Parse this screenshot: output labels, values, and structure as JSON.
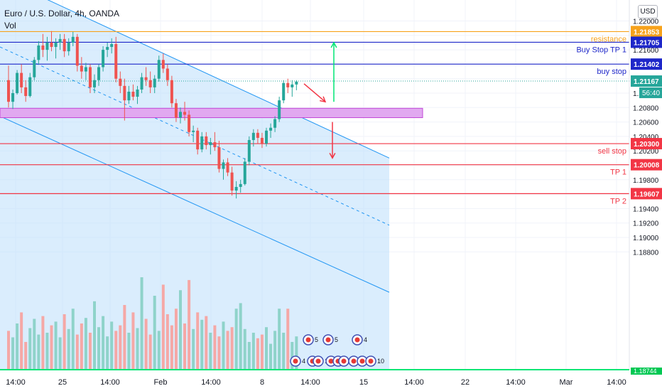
{
  "legend": {
    "symbol_title": "Euro / U.S. Dollar, 4h, OANDA",
    "indicator": "Vol"
  },
  "currency_button": "USD",
  "colors": {
    "up": "#26a69a",
    "down": "#ef5350",
    "vol_up": "#8fd3ca",
    "vol_down": "#f5a8a6",
    "channel": "#2196f3",
    "channel_fill": "#bbdefb",
    "resistance": "#f7a21b",
    "blue_level": "#1e27c9",
    "red_level": "#f23645",
    "zone_fill": "#e1a9f0",
    "zone_border": "#c24ad6",
    "arrow_up": "#00e676",
    "arrow_down": "#f23645",
    "last_price": "#26a69a"
  },
  "chart_data": {
    "type": "candlestick",
    "symbol": "Euro / U.S. Dollar",
    "timeframe": "4h",
    "y_axis_ticks": [
      1.22,
      1.218,
      1.216,
      1.214,
      1.212,
      1.21,
      1.208,
      1.206,
      1.204,
      1.202,
      1.2,
      1.198,
      1.196,
      1.194,
      1.192,
      1.19,
      1.188
    ],
    "y_axis_tick_labels": [
      "1.22000",
      "1.21800",
      "1.21600",
      "1.21400",
      "1.21200",
      "1.21000",
      "1.20800",
      "1.20600",
      "1.20400",
      "1.20200",
      "1.20000",
      "1.19800",
      "1.19600",
      "1.19400",
      "1.19200",
      "1.19000",
      "1.18800"
    ],
    "ylim": [
      1.1874,
      1.2225
    ],
    "x_axis_ticks": [
      "14:00",
      "25",
      "14:00",
      "Feb",
      "14:00",
      "8",
      "14:00",
      "15",
      "14:00",
      "22",
      "14:00",
      "Mar",
      "14:00"
    ],
    "candles_ohlc": [
      [
        1.2118,
        1.2138,
        1.208,
        1.2088
      ],
      [
        1.2088,
        1.2105,
        1.2078,
        1.21
      ],
      [
        1.21,
        1.2132,
        1.2098,
        1.2128
      ],
      [
        1.2128,
        1.214,
        1.21,
        1.2108
      ],
      [
        1.2108,
        1.2118,
        1.2088,
        1.2096
      ],
      [
        1.2096,
        1.2128,
        1.2094,
        1.2122
      ],
      [
        1.2122,
        1.215,
        1.2118,
        1.2146
      ],
      [
        1.2146,
        1.2172,
        1.214,
        1.2166
      ],
      [
        1.2166,
        1.2182,
        1.215,
        1.216
      ],
      [
        1.216,
        1.2178,
        1.2145,
        1.217
      ],
      [
        1.217,
        1.2186,
        1.2158,
        1.2164
      ],
      [
        1.2164,
        1.2176,
        1.2148,
        1.217
      ],
      [
        1.217,
        1.2182,
        1.216,
        1.2175
      ],
      [
        1.2175,
        1.2182,
        1.215,
        1.2158
      ],
      [
        1.2158,
        1.2176,
        1.2152,
        1.217
      ],
      [
        1.217,
        1.2185,
        1.2165,
        1.2178
      ],
      [
        1.2178,
        1.2182,
        1.213,
        1.2138
      ],
      [
        1.2138,
        1.215,
        1.212,
        1.213
      ],
      [
        1.213,
        1.2142,
        1.2118,
        1.2136
      ],
      [
        1.2136,
        1.214,
        1.21,
        1.2108
      ],
      [
        1.2108,
        1.2126,
        1.21,
        1.2118
      ],
      [
        1.2118,
        1.214,
        1.211,
        1.2136
      ],
      [
        1.2136,
        1.2165,
        1.213,
        1.216
      ],
      [
        1.216,
        1.217,
        1.215,
        1.2164
      ],
      [
        1.2164,
        1.2176,
        1.2155,
        1.2168
      ],
      [
        1.2168,
        1.2178,
        1.2115,
        1.212
      ],
      [
        1.212,
        1.213,
        1.21,
        1.211
      ],
      [
        1.211,
        1.212,
        1.2062,
        1.209
      ],
      [
        1.209,
        1.211,
        1.2085,
        1.2102
      ],
      [
        1.2102,
        1.2112,
        1.209,
        1.2095
      ],
      [
        1.2095,
        1.211,
        1.2085,
        1.2105
      ],
      [
        1.2105,
        1.2128,
        1.21,
        1.2122
      ],
      [
        1.2122,
        1.2136,
        1.211,
        1.2118
      ],
      [
        1.2118,
        1.213,
        1.21,
        1.2108
      ],
      [
        1.2108,
        1.2125,
        1.21,
        1.212
      ],
      [
        1.212,
        1.2152,
        1.2116,
        1.2146
      ],
      [
        1.2146,
        1.2155,
        1.2128,
        1.2134
      ],
      [
        1.2134,
        1.214,
        1.211,
        1.2118
      ],
      [
        1.2118,
        1.2124,
        1.208,
        1.2086
      ],
      [
        1.2086,
        1.2092,
        1.206,
        1.2066
      ],
      [
        1.2066,
        1.208,
        1.2058,
        1.2074
      ],
      [
        1.2074,
        1.2088,
        1.2062,
        1.207
      ],
      [
        1.207,
        1.2076,
        1.204,
        1.2046
      ],
      [
        1.2046,
        1.2055,
        1.2032,
        1.2048
      ],
      [
        1.2048,
        1.2052,
        1.2015,
        1.2022
      ],
      [
        1.2022,
        1.2046,
        1.2018,
        1.204
      ],
      [
        1.204,
        1.2046,
        1.2022,
        1.2028
      ],
      [
        1.2028,
        1.2038,
        1.2015,
        1.2032
      ],
      [
        1.2032,
        1.2046,
        1.202,
        1.2025
      ],
      [
        1.2025,
        1.2034,
        1.199,
        1.1995
      ],
      [
        1.1995,
        1.2008,
        1.198,
        1.2004
      ],
      [
        1.2004,
        1.201,
        1.1985,
        1.199
      ],
      [
        1.199,
        1.1998,
        1.1958,
        1.1965
      ],
      [
        1.1965,
        1.1978,
        1.1954,
        1.197
      ],
      [
        1.197,
        1.198,
        1.1962,
        1.1974
      ],
      [
        1.1974,
        1.201,
        1.1972,
        1.2005
      ],
      [
        1.2005,
        1.204,
        1.2,
        1.2035
      ],
      [
        1.2035,
        1.205,
        1.2026,
        1.2045
      ],
      [
        1.2045,
        1.205,
        1.203,
        1.2038
      ],
      [
        1.2038,
        1.2045,
        1.2024,
        1.203
      ],
      [
        1.203,
        1.2052,
        1.2026,
        1.2048
      ],
      [
        1.2048,
        1.2058,
        1.2038,
        1.2052
      ],
      [
        1.2052,
        1.2068,
        1.2046,
        1.2064
      ],
      [
        1.2064,
        1.2095,
        1.206,
        1.209
      ],
      [
        1.209,
        1.2118,
        1.2086,
        1.2114
      ],
      [
        1.2114,
        1.212,
        1.21,
        1.2108
      ],
      [
        1.2108,
        1.2118,
        1.2095,
        1.2112
      ],
      [
        1.2112,
        1.2118,
        1.2104,
        1.2116
      ]
    ],
    "volume_heights": [
      0.42,
      0.35,
      0.5,
      0.62,
      0.3,
      0.45,
      0.55,
      0.38,
      0.58,
      0.4,
      0.48,
      0.52,
      0.35,
      0.6,
      0.44,
      0.66,
      0.38,
      0.5,
      0.56,
      0.4,
      0.74,
      0.46,
      0.58,
      0.36,
      0.52,
      0.42,
      0.48,
      0.7,
      0.4,
      0.62,
      0.45,
      1.0,
      0.55,
      0.38,
      0.8,
      0.42,
      0.92,
      0.6,
      0.48,
      0.66,
      0.86,
      0.5,
      0.97,
      0.44,
      0.62,
      0.54,
      0.58,
      0.4,
      0.48,
      0.36,
      0.52,
      0.42,
      0.46,
      0.66,
      0.72,
      0.44,
      0.3,
      0.4,
      0.34,
      0.38,
      0.46,
      0.28,
      0.42,
      0.66,
      0.4,
      0.66,
      0.3,
      0.36
    ],
    "channel": {
      "upper_start": 1.226,
      "upper_end": 1.201,
      "lower_start": 1.2068,
      "lower_end": 1.1824
    },
    "horizontal_levels": [
      {
        "name": "resistance",
        "value": 1.21853,
        "label": "resistance",
        "price_label": "1.21853"
      },
      {
        "name": "buy-stop-tp1",
        "value": 1.21705,
        "label": "Buy Stop TP 1",
        "price_label": "1.21705"
      },
      {
        "name": "buy-stop",
        "value": 1.21402,
        "label": "buy stop",
        "price_label": "1.21402"
      },
      {
        "name": "sell-stop",
        "value": 1.203,
        "label": "sell stop",
        "price_label": "1.20300"
      },
      {
        "name": "tp1",
        "value": 1.20008,
        "label": "TP 1",
        "price_label": "1.20008"
      },
      {
        "name": "tp2",
        "value": 1.19607,
        "label": "TP 2",
        "price_label": "1.19607"
      }
    ],
    "last_price": {
      "value": 1.21167,
      "label": "1.21167",
      "countdown": "56:40"
    },
    "bottom_price_label": "1.18744",
    "zone": {
      "top": 1.2079,
      "bottom": 1.2066
    },
    "arrows": [
      {
        "name": "arrow-up",
        "from": 1.2088,
        "to": 1.217
      },
      {
        "name": "arrow-down-short",
        "from": 1.2113,
        "to": 1.2088
      },
      {
        "name": "arrow-down-long",
        "from": 1.206,
        "to": 1.201
      }
    ],
    "event_badges": [
      {
        "label": "5",
        "row": "top"
      },
      {
        "label": "5",
        "row": "top"
      },
      {
        "label": "4",
        "row": "top"
      },
      {
        "label": "4",
        "row": "bottom"
      },
      {
        "label": "8",
        "row": "bottom"
      },
      {
        "label": "1",
        "row": "bottom"
      },
      {
        "label": "3",
        "row": "bottom"
      },
      {
        "label": "5",
        "row": "bottom"
      },
      {
        "label": "1",
        "row": "bottom"
      },
      {
        "label": "5",
        "row": "bottom"
      },
      {
        "label": "10",
        "row": "bottom"
      },
      {
        "label": "10",
        "row": "bottom"
      }
    ]
  }
}
